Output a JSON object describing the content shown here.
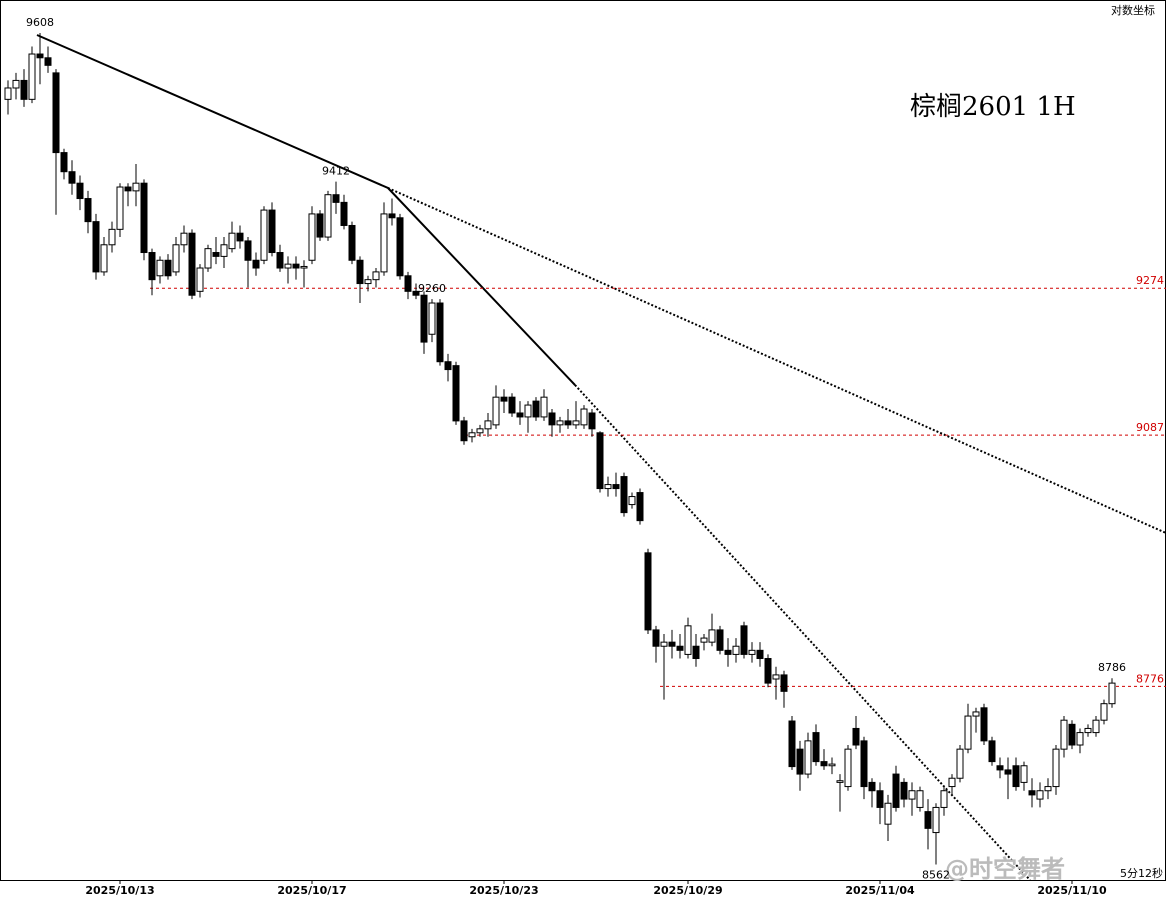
{
  "chart_data": {
    "type": "candlestick",
    "title": "棕榈2601  1H",
    "subtitle": "对数坐标",
    "watermark": "@时空舞者",
    "countdown": "5分12秒",
    "log_scale": true,
    "ylim": [
      8546,
      9652
    ],
    "up_color": "#ffffff",
    "down_color": "#000000",
    "ref_color": "#d00000",
    "hlines": [
      9274,
      9087,
      8776
    ],
    "annotations": [
      9608,
      9412,
      9260,
      8786,
      8562
    ],
    "categories": [
      null,
      null,
      null,
      null,
      null,
      null,
      null,
      null,
      null,
      null,
      null,
      null,
      null,
      null,
      "2025/10/13",
      null,
      null,
      null,
      null,
      null,
      null,
      null,
      null,
      null,
      null,
      null,
      null,
      null,
      null,
      null,
      null,
      null,
      null,
      null,
      null,
      null,
      null,
      null,
      "2025/10/17",
      null,
      null,
      null,
      null,
      null,
      null,
      null,
      null,
      null,
      null,
      null,
      null,
      null,
      null,
      null,
      null,
      null,
      null,
      null,
      null,
      null,
      null,
      null,
      "2025/10/23",
      null,
      null,
      null,
      null,
      null,
      null,
      null,
      null,
      null,
      null,
      null,
      null,
      null,
      null,
      null,
      null,
      null,
      null,
      null,
      null,
      null,
      null,
      "2025/10/29",
      null,
      null,
      null,
      null,
      null,
      null,
      null,
      null,
      null,
      null,
      null,
      null,
      null,
      null,
      null,
      null,
      null,
      null,
      null,
      null,
      null,
      null,
      null,
      "2025/11/04",
      null,
      null,
      null,
      null,
      null,
      null,
      null,
      null,
      null,
      null,
      null,
      null,
      null,
      null,
      null,
      null,
      null,
      null,
      null,
      null,
      null,
      null,
      null,
      "2025/11/10",
      null,
      null,
      null,
      null,
      null
    ],
    "values": [
      [
        9520,
        9545,
        9500,
        9535
      ],
      [
        9535,
        9555,
        9520,
        9545
      ],
      [
        9545,
        9560,
        9510,
        9520
      ],
      [
        9520,
        9590,
        9515,
        9580
      ],
      [
        9580,
        9608,
        9540,
        9575
      ],
      [
        9575,
        9590,
        9555,
        9565
      ],
      [
        9555,
        9560,
        9369,
        9450
      ],
      [
        9450,
        9455,
        9415,
        9425
      ],
      [
        9425,
        9440,
        9395,
        9410
      ],
      [
        9410,
        9420,
        9375,
        9390
      ],
      [
        9390,
        9400,
        9345,
        9360
      ],
      [
        9360,
        9370,
        9285,
        9295
      ],
      [
        9295,
        9340,
        9290,
        9330
      ],
      [
        9330,
        9360,
        9320,
        9350
      ],
      [
        9350,
        9410,
        9340,
        9405
      ],
      [
        9405,
        9410,
        9380,
        9400
      ],
      [
        9400,
        9435,
        9380,
        9410
      ],
      [
        9410,
        9415,
        9310,
        9320
      ],
      [
        9320,
        9325,
        9265,
        9285
      ],
      [
        9290,
        9315,
        9280,
        9310
      ],
      [
        9310,
        9318,
        9285,
        9290
      ],
      [
        9295,
        9340,
        9290,
        9330
      ],
      [
        9330,
        9355,
        9320,
        9345
      ],
      [
        9345,
        9350,
        9260,
        9265
      ],
      [
        9270,
        9305,
        9262,
        9300
      ],
      [
        9300,
        9330,
        9295,
        9325
      ],
      [
        9320,
        9340,
        9305,
        9315
      ],
      [
        9315,
        9340,
        9300,
        9330
      ],
      [
        9325,
        9360,
        9320,
        9345
      ],
      [
        9345,
        9355,
        9325,
        9335
      ],
      [
        9335,
        9340,
        9275,
        9310
      ],
      [
        9310,
        9320,
        9290,
        9300
      ],
      [
        9310,
        9380,
        9305,
        9375
      ],
      [
        9375,
        9385,
        9315,
        9320
      ],
      [
        9320,
        9330,
        9295,
        9300
      ],
      [
        9300,
        9315,
        9280,
        9305
      ],
      [
        9305,
        9315,
        9285,
        9300
      ],
      [
        9300,
        9310,
        9275,
        9302
      ],
      [
        9310,
        9380,
        9305,
        9370
      ],
      [
        9370,
        9375,
        9335,
        9340
      ],
      [
        9340,
        9400,
        9335,
        9395
      ],
      [
        9395,
        9412,
        9370,
        9385
      ],
      [
        9385,
        9395,
        9350,
        9355
      ],
      [
        9355,
        9360,
        9305,
        9310
      ],
      [
        9310,
        9315,
        9255,
        9280
      ],
      [
        9280,
        9290,
        9270,
        9285
      ],
      [
        9285,
        9300,
        9275,
        9295
      ],
      [
        9295,
        9385,
        9290,
        9370
      ],
      [
        9370,
        9390,
        9355,
        9365
      ],
      [
        9365,
        9370,
        9285,
        9290
      ],
      [
        9290,
        9295,
        9260,
        9270
      ],
      [
        9270,
        9280,
        9260,
        9265
      ],
      [
        9265,
        9270,
        9190,
        9205
      ],
      [
        9215,
        9260,
        9205,
        9255
      ],
      [
        9255,
        9260,
        9175,
        9180
      ],
      [
        9180,
        9190,
        9155,
        9170
      ],
      [
        9175,
        9180,
        9100,
        9105
      ],
      [
        9105,
        9110,
        9075,
        9080
      ],
      [
        9085,
        9095,
        9078,
        9090
      ],
      [
        9090,
        9100,
        9085,
        9095
      ],
      [
        9095,
        9115,
        9085,
        9105
      ],
      [
        9100,
        9150,
        9095,
        9135
      ],
      [
        9135,
        9145,
        9115,
        9130
      ],
      [
        9135,
        9140,
        9110,
        9115
      ],
      [
        9115,
        9130,
        9100,
        9110
      ],
      [
        9110,
        9130,
        9090,
        9125
      ],
      [
        9130,
        9135,
        9105,
        9110
      ],
      [
        9110,
        9145,
        9105,
        9135
      ],
      [
        9115,
        9120,
        9085,
        9100
      ],
      [
        9100,
        9110,
        9090,
        9105
      ],
      [
        9105,
        9120,
        9095,
        9100
      ],
      [
        9100,
        9130,
        9095,
        9105
      ],
      [
        9100,
        9125,
        9095,
        9120
      ],
      [
        9115,
        9120,
        9085,
        9095
      ],
      [
        9090,
        9092,
        9015,
        9020
      ],
      [
        9020,
        9035,
        9010,
        9025
      ],
      [
        9025,
        9040,
        9010,
        9020
      ],
      [
        9035,
        9040,
        8985,
        8990
      ],
      [
        9000,
        9015,
        8995,
        9010
      ],
      [
        9015,
        9020,
        8975,
        8980
      ],
      [
        8940,
        8945,
        8840,
        8845
      ],
      [
        8845,
        8850,
        8805,
        8825
      ],
      [
        8825,
        8840,
        8760,
        8830
      ],
      [
        8830,
        8845,
        8810,
        8825
      ],
      [
        8825,
        8840,
        8810,
        8820
      ],
      [
        8815,
        8860,
        8810,
        8850
      ],
      [
        8825,
        8840,
        8800,
        8810
      ],
      [
        8830,
        8840,
        8820,
        8835
      ],
      [
        8830,
        8865,
        8825,
        8845
      ],
      [
        8845,
        8850,
        8815,
        8820
      ],
      [
        8820,
        8835,
        8800,
        8815
      ],
      [
        8815,
        8835,
        8805,
        8825
      ],
      [
        8850,
        8855,
        8810,
        8815
      ],
      [
        8815,
        8830,
        8805,
        8820
      ],
      [
        8820,
        8830,
        8800,
        8810
      ],
      [
        8810,
        8815,
        8775,
        8780
      ],
      [
        8785,
        8800,
        8760,
        8790
      ],
      [
        8790,
        8795,
        8750,
        8770
      ],
      [
        8734,
        8740,
        8675,
        8679
      ],
      [
        8700,
        8710,
        8650,
        8670
      ],
      [
        8670,
        8720,
        8665,
        8710
      ],
      [
        8720,
        8730,
        8680,
        8685
      ],
      [
        8685,
        8700,
        8675,
        8680
      ],
      [
        8680,
        8690,
        8670,
        8682
      ],
      [
        8660,
        8670,
        8625,
        8662
      ],
      [
        8655,
        8705,
        8650,
        8700
      ],
      [
        8725,
        8740,
        8700,
        8705
      ],
      [
        8710,
        8715,
        8640,
        8655
      ],
      [
        8660,
        8665,
        8630,
        8650
      ],
      [
        8650,
        8660,
        8610,
        8630
      ],
      [
        8610,
        8645,
        8590,
        8635
      ],
      [
        8670,
        8680,
        8625,
        8630
      ],
      [
        8660,
        8665,
        8630,
        8640
      ],
      [
        8640,
        8660,
        8620,
        8650
      ],
      [
        8630,
        8655,
        8625,
        8650
      ],
      [
        8625,
        8640,
        8580,
        8605
      ],
      [
        8600,
        8635,
        8562,
        8630
      ],
      [
        8630,
        8655,
        8620,
        8650
      ],
      [
        8655,
        8670,
        8645,
        8665
      ],
      [
        8665,
        8705,
        8660,
        8700
      ],
      [
        8700,
        8755,
        8695,
        8740
      ],
      [
        8740,
        8750,
        8720,
        8745
      ],
      [
        8750,
        8755,
        8705,
        8710
      ],
      [
        8710,
        8715,
        8680,
        8685
      ],
      [
        8680,
        8690,
        8665,
        8675
      ],
      [
        8675,
        8690,
        8640,
        8670
      ],
      [
        8680,
        8690,
        8650,
        8655
      ],
      [
        8660,
        8685,
        8650,
        8680
      ],
      [
        8650,
        8665,
        8630,
        8645
      ],
      [
        8640,
        8660,
        8630,
        8650
      ],
      [
        8650,
        8665,
        8640,
        8655
      ],
      [
        8655,
        8705,
        8645,
        8700
      ],
      [
        8700,
        8740,
        8690,
        8735
      ],
      [
        8730,
        8735,
        8700,
        8705
      ],
      [
        8705,
        8725,
        8695,
        8720
      ],
      [
        8720,
        8730,
        8715,
        8725
      ],
      [
        8720,
        8740,
        8715,
        8735
      ],
      [
        8735,
        8760,
        8730,
        8755
      ],
      [
        8755,
        8786,
        8750,
        8780
      ]
    ]
  }
}
